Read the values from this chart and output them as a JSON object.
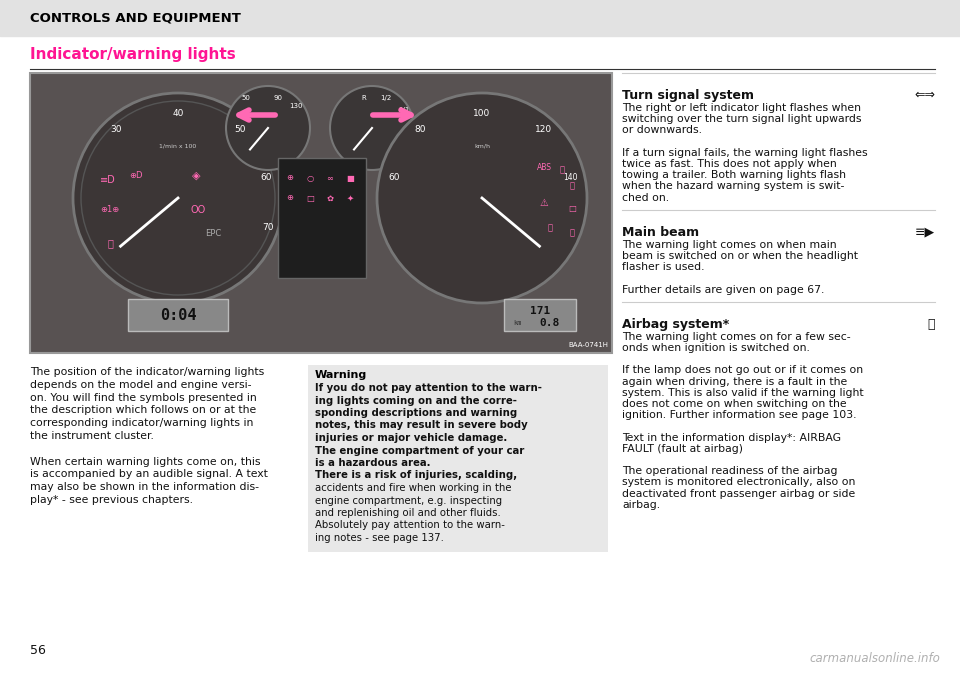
{
  "bg_color": "#ffffff",
  "header_bg": "#e2e2e2",
  "header_text": "CONTROLS AND EQUIPMENT",
  "header_text_color": "#000000",
  "section_title": "Indicator/warning lights",
  "section_title_color": "#ff1493",
  "page_number": "56",
  "watermark": "carmanualsonline.info",
  "left_col_text": [
    "The position of the indicator/warning lights",
    "depends on the model and engine versi-",
    "on. You will find the symbols presented in",
    "the description which follows on or at the",
    "corresponding indicator/warning lights in",
    "the instrument cluster.",
    "",
    "When certain warning lights come on, this",
    "is accompanied by an audible signal. A text",
    "may also be shown in the information dis-",
    "play* - see previous chapters."
  ],
  "warning_title": "Warning",
  "warning_text_bold": [
    "If you do not pay attention to the warn-",
    "ing lights coming on and the corre-",
    "sponding descriptions and warning",
    "notes, this may result in severe body",
    "injuries or major vehicle damage.",
    "The engine compartment of your car",
    "is a hazardous area.",
    "There is a risk of injuries, scalding,",
    "accidents and fire when working in the",
    "engine compartment, e.g. inspecting",
    "and replenishing oil and other fluids.",
    "Absolutely pay attention to the warn-",
    "ing notes - see page 137."
  ],
  "right_sections": [
    {
      "title": "Turn signal system",
      "symbol": "⇐⇒",
      "lines": [
        "The right or left indicator light flashes when",
        "switching over the turn signal light upwards",
        "or downwards.",
        "",
        "If a turn signal fails, the warning light flashes",
        "twice as fast. This does not apply when",
        "towing a trailer. Both warning lights flash",
        "when the hazard warning system is swit-",
        "ched on."
      ]
    },
    {
      "title": "Main beam",
      "symbol": "≡▶",
      "lines": [
        "The warning light comes on when main",
        "beam is switched on or when the headlight",
        "flasher is used.",
        "",
        "Further details are given on page 67."
      ]
    },
    {
      "title": "Airbag system*",
      "symbol": "👤",
      "lines": [
        "The warning light comes on for a few sec-",
        "onds when ignition is switched on.",
        "",
        "If the lamp does not go out or if it comes on",
        "again when driving, there is a fault in the",
        "system. This is also valid if the warning light",
        "does not come on when switching on the",
        "ignition. Further information see page 103.",
        "",
        "Text in the information display*: AIRBAG",
        "FAULT (fault at airbag)",
        "",
        "The operational readiness of the airbag",
        "system is monitored electronically, also on",
        "deactivated front passenger airbag or side",
        "airbag."
      ]
    }
  ],
  "warning_bg": "#e8e8e8",
  "dash_bg": "#5a5555",
  "dash_border": "#888888"
}
